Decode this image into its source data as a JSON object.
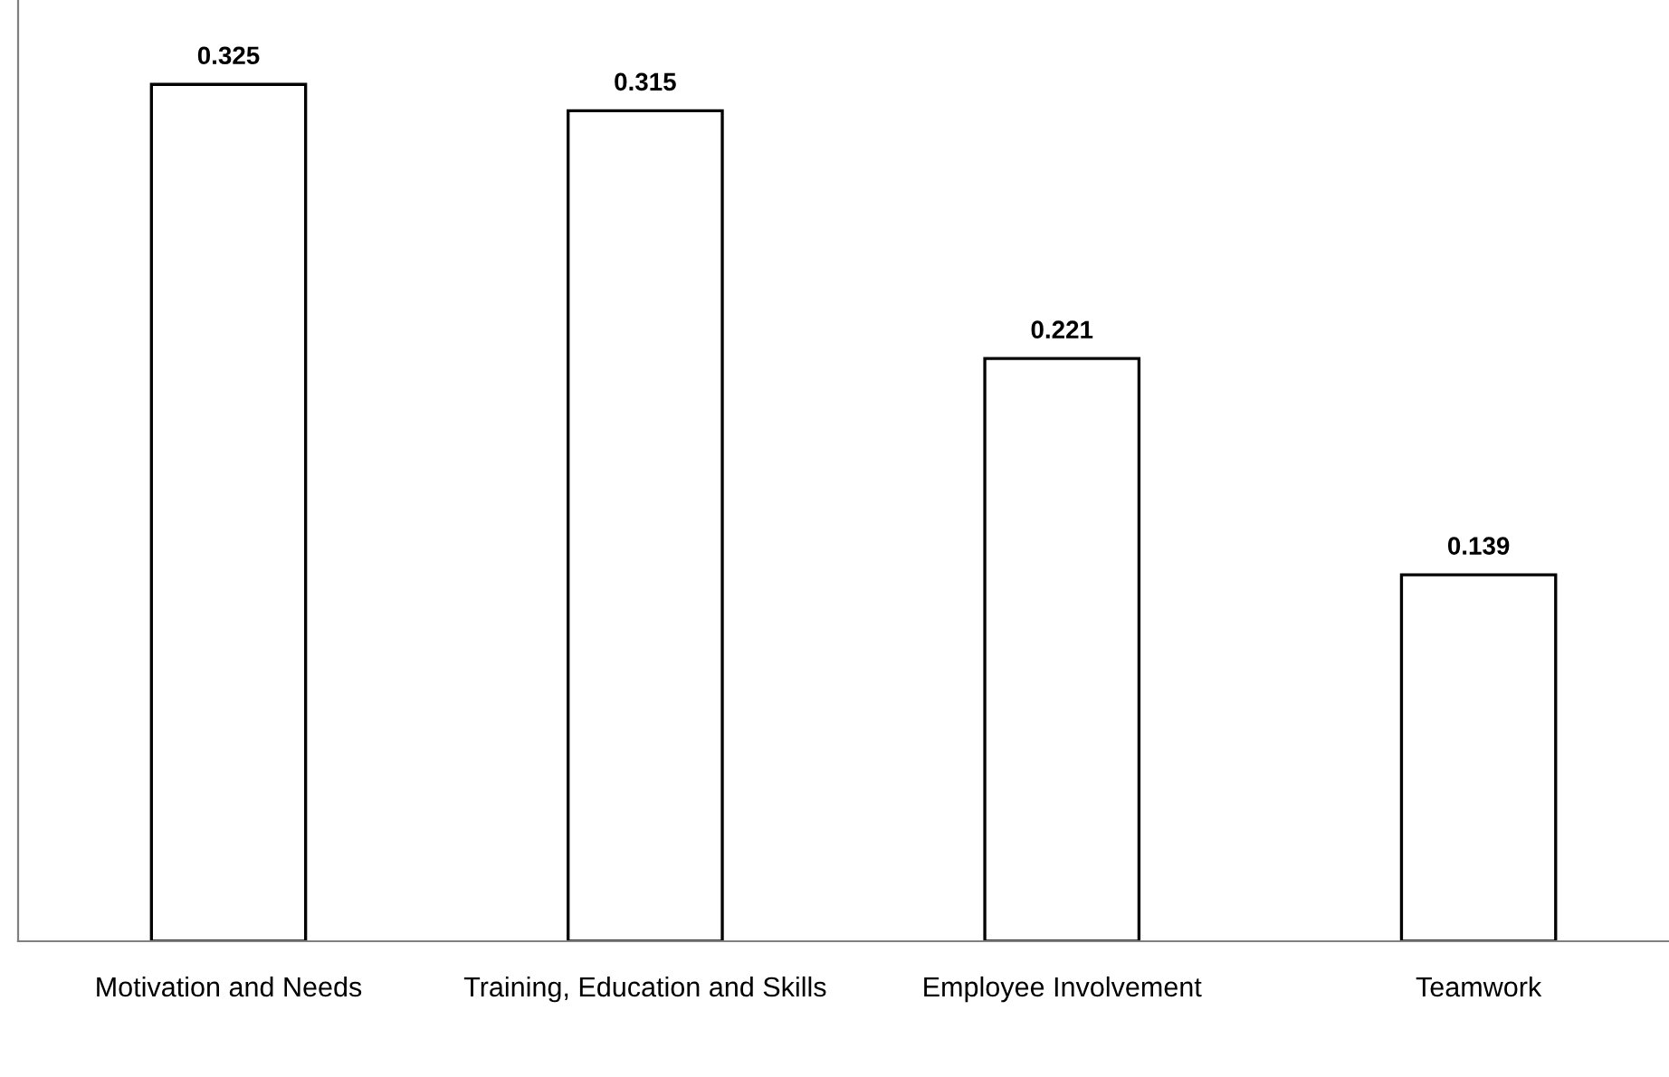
{
  "chart_data": {
    "type": "bar",
    "categories": [
      "Motivation and Needs",
      "Training, Education and Skills",
      "Employee Involvement",
      "Teamwork"
    ],
    "values": [
      0.325,
      0.315,
      0.221,
      0.139
    ],
    "color": "#ffffff",
    "ylim": [
      0,
      0.357
    ],
    "tick_labels": "x",
    "data_labels": true,
    "grid": false,
    "legend": false
  }
}
